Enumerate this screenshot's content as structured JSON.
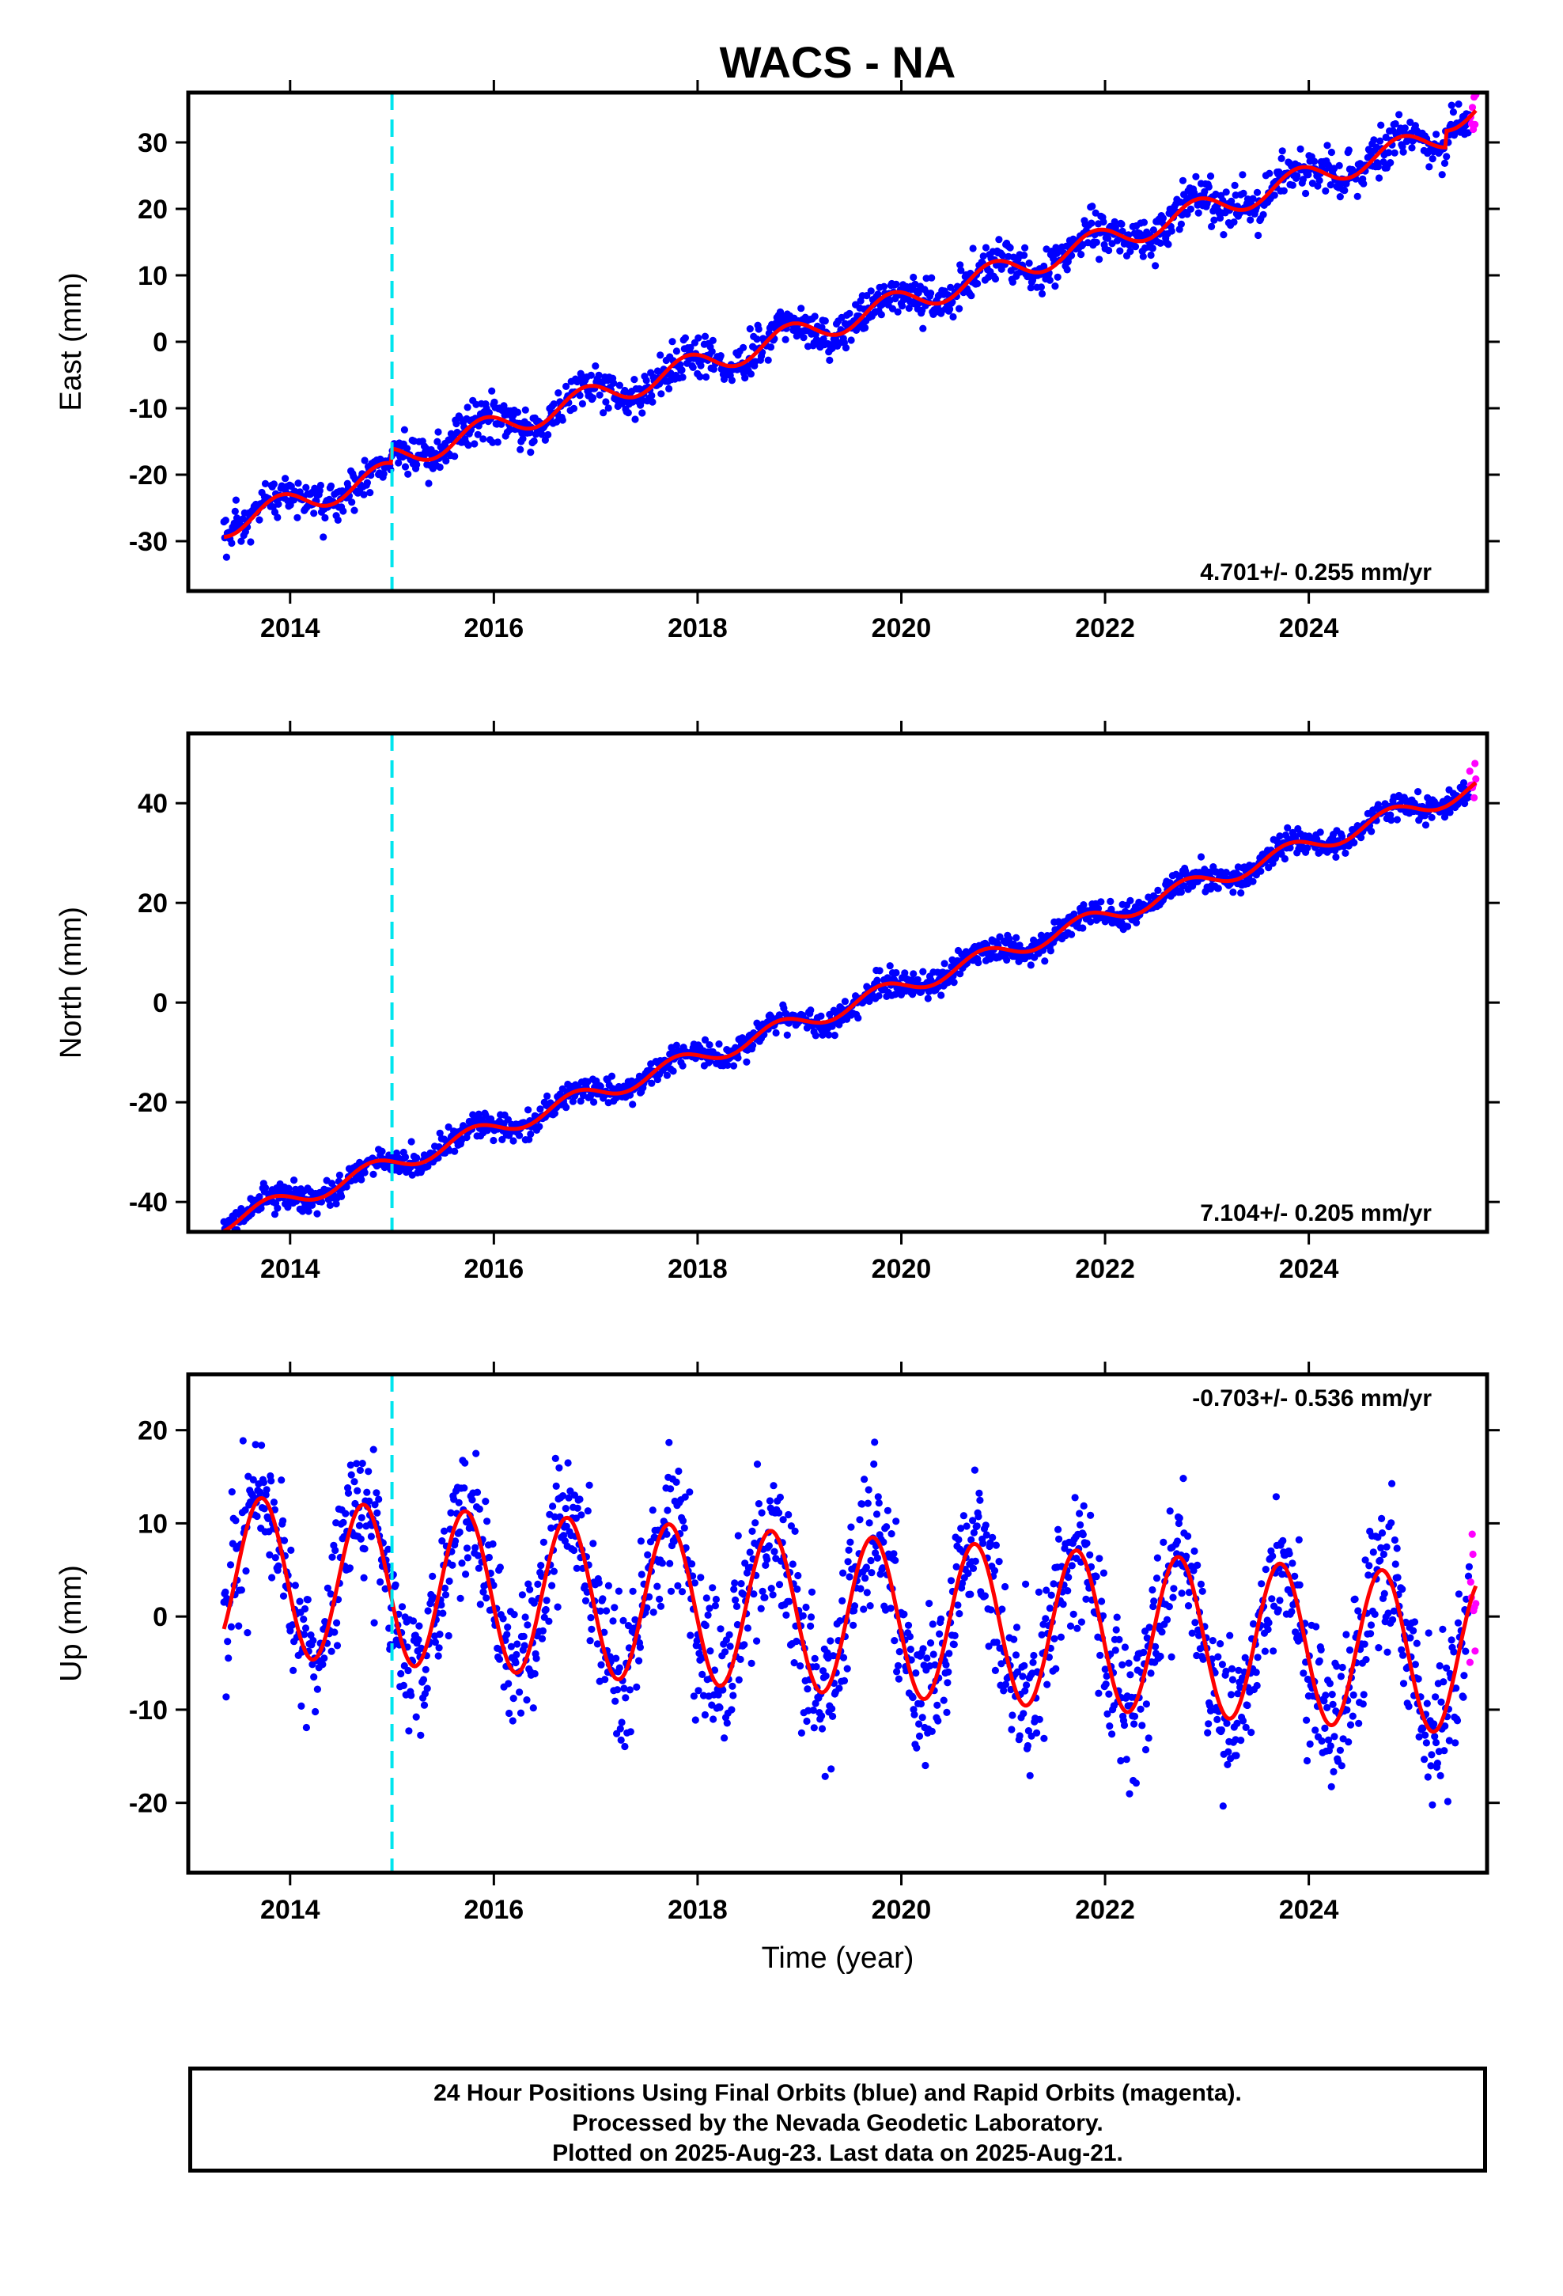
{
  "title": "WACS - NA",
  "colors": {
    "final_orbits": "#0000ff",
    "rapid_orbits": "#ff00ff",
    "model": "#ff0000",
    "equipment_change": "#00e5ee",
    "frame": "#000000"
  },
  "caption": {
    "line1": "24 Hour Positions Using Final Orbits (blue) and Rapid Orbits (magenta).",
    "line2": "Processed by the Nevada Geodetic Laboratory.",
    "line3": "Plotted on 2025-Aug-23. Last data on 2025-Aug-21."
  },
  "chart_data": [
    {
      "type": "scatter",
      "component": "east",
      "ylabel": "East (mm)",
      "xlabel": "",
      "xlim": [
        2013.0,
        2025.75
      ],
      "ylim": [
        -37.5,
        37.5
      ],
      "xticks": [
        2014,
        2016,
        2018,
        2020,
        2022,
        2024
      ],
      "yticks": [
        -30,
        -20,
        -10,
        0,
        10,
        20,
        30
      ],
      "rate_label": "4.701+/- 0.255 mm/yr",
      "data_start": 2013.35,
      "data_end": 2025.64,
      "rapid_start": 2025.58,
      "equipment_change": 2015.0,
      "trend": {
        "rate": 4.701,
        "ref_epoch": 2019.0,
        "ref_value": -1.0
      },
      "seasonal": {
        "annual_amp": 1.9,
        "annual_phase": 0.65
      },
      "offsets": [
        {
          "epoch": 2015.0,
          "value": 2.2
        },
        {
          "epoch": 2025.35,
          "value": 2.5
        }
      ],
      "scatter_sd": 1.6,
      "npoints": 1450,
      "model_series": {
        "name": "Model"
      }
    },
    {
      "type": "scatter",
      "component": "north",
      "ylabel": "North (mm)",
      "xlabel": "",
      "xlim": [
        2013.0,
        2025.75
      ],
      "ylim": [
        -46,
        54
      ],
      "xticks": [
        2014,
        2016,
        2018,
        2020,
        2022,
        2024
      ],
      "yticks": [
        -40,
        -20,
        0,
        20,
        40
      ],
      "rate_label": "7.104+/- 0.205 mm/yr",
      "data_start": 2013.35,
      "data_end": 2025.64,
      "rapid_start": 2025.58,
      "equipment_change": 2015.0,
      "trend": {
        "rate": 7.104,
        "ref_epoch": 2019.0,
        "ref_value": -4.0
      },
      "seasonal": {
        "annual_amp": 1.8,
        "annual_phase": 0.55
      },
      "offsets": [],
      "scatter_sd": 1.3,
      "npoints": 1450,
      "model_series": {
        "name": "Model"
      }
    },
    {
      "type": "scatter",
      "component": "up",
      "ylabel": "Up (mm)",
      "xlabel": "Time (year)",
      "xlim": [
        2013.0,
        2025.75
      ],
      "ylim": [
        -27.5,
        26
      ],
      "xticks": [
        2014,
        2016,
        2018,
        2020,
        2022,
        2024
      ],
      "yticks": [
        -20,
        -10,
        0,
        10,
        20
      ],
      "rate_label": "-0.703+/- 0.536 mm/yr",
      "data_start": 2013.35,
      "data_end": 2025.64,
      "rapid_start": 2025.58,
      "equipment_change": 2015.0,
      "trend": {
        "rate": -0.703,
        "ref_epoch": 2019.0,
        "ref_value": 0.5
      },
      "seasonal": {
        "annual_amp": 8.5,
        "annual_phase": 0.47
      },
      "offsets": [],
      "scatter_sd": 3.8,
      "npoints": 1700,
      "model_series": {
        "name": "Model"
      }
    }
  ]
}
